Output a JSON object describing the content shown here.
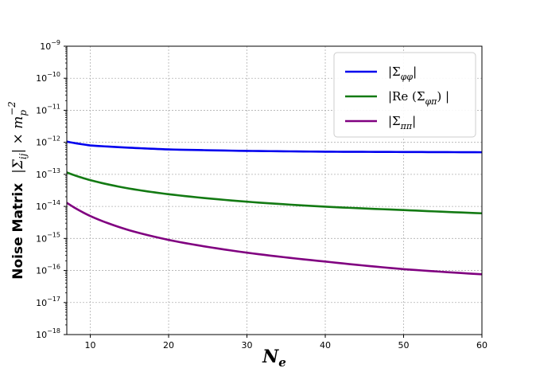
{
  "chart_data": {
    "type": "line",
    "xlabel": "N_e",
    "ylabel": {
      "prefix": "Noise Matrix",
      "math": "|Σ_ij| × m_p^-2"
    },
    "xlim": [
      7,
      60
    ],
    "ylim_exponents": [
      -18,
      -9
    ],
    "y_scale": "log",
    "grid": true,
    "legend_placement": "top-right",
    "x_ticks": [
      10,
      20,
      30,
      40,
      50,
      60
    ],
    "y_tick_exponents": [
      -18,
      -17,
      -16,
      -15,
      -14,
      -13,
      -12,
      -11,
      -10,
      -9
    ],
    "series": [
      {
        "name": "|Σ_φφ|",
        "color": "#0000ee",
        "x": [
          7,
          10,
          15,
          20,
          30,
          40,
          50,
          60
        ],
        "y": [
          1.05e-12,
          8e-13,
          6.8e-13,
          6e-13,
          5.4e-13,
          5.1e-13,
          5e-13,
          4.9e-13
        ]
      },
      {
        "name": "|Re (Σ_φπ) |",
        "color": "#137a13",
        "x": [
          7,
          10,
          15,
          20,
          30,
          40,
          50,
          60
        ],
        "y": [
          1.15e-13,
          6.6e-14,
          3.6e-14,
          2.4e-14,
          1.4e-14,
          9.8e-15,
          7.7e-15,
          6.1e-15
        ]
      },
      {
        "name": "|Σ_ππ|",
        "color": "#800080",
        "x": [
          7,
          10,
          15,
          20,
          30,
          40,
          50,
          60
        ],
        "y": [
          1.3e-14,
          5e-15,
          1.8e-15,
          9e-16,
          3.6e-16,
          1.9e-16,
          1.1e-16,
          7.6e-17
        ]
      }
    ]
  }
}
